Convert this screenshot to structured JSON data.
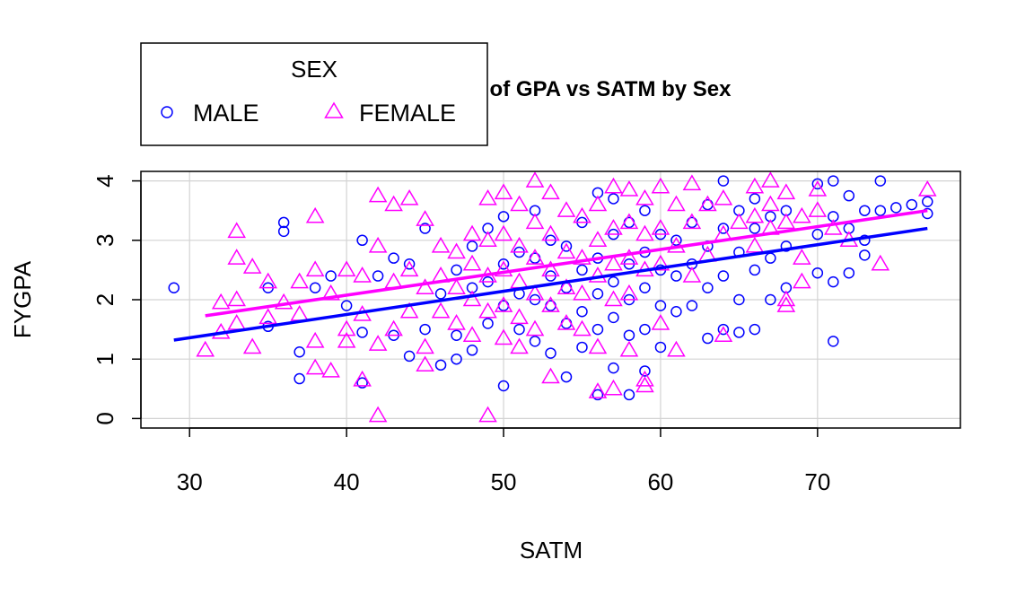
{
  "chart_data": {
    "type": "scatter",
    "title": "Scatterplot of GPA vs SATM by Sex",
    "xlabel": "SATM",
    "ylabel": "FYGPA",
    "xlim": [
      26.9,
      79.1
    ],
    "ylim": [
      -0.16,
      4.16
    ],
    "x_ticks": [
      "30",
      "40",
      "50",
      "60",
      "70"
    ],
    "y_ticks": [
      "0",
      "1",
      "2",
      "3",
      "4"
    ],
    "grid": true,
    "legend": {
      "title": "SEX",
      "placement": "top-left",
      "entries": [
        {
          "label": "MALE",
          "marker": "circle",
          "color": "#0000ff"
        },
        {
          "label": "FEMALE",
          "marker": "triangle",
          "color": "#ff00ff"
        }
      ]
    },
    "series": [
      {
        "name": "MALE",
        "color": "#0000ff",
        "marker": "circle",
        "points": [
          [
            29,
            2.2
          ],
          [
            35,
            1.55
          ],
          [
            35,
            2.2
          ],
          [
            36,
            3.3
          ],
          [
            36,
            3.15
          ],
          [
            37,
            0.67
          ],
          [
            37,
            1.12
          ],
          [
            38,
            2.2
          ],
          [
            39,
            2.4
          ],
          [
            40,
            1.9
          ],
          [
            41,
            0.6
          ],
          [
            41,
            3.0
          ],
          [
            41,
            1.45
          ],
          [
            42,
            2.4
          ],
          [
            43,
            1.4
          ],
          [
            43,
            2.7
          ],
          [
            44,
            1.05
          ],
          [
            44,
            2.6
          ],
          [
            45,
            1.5
          ],
          [
            45,
            3.2
          ],
          [
            46,
            0.9
          ],
          [
            46,
            2.1
          ],
          [
            47,
            1.0
          ],
          [
            47,
            1.4
          ],
          [
            47,
            2.5
          ],
          [
            48,
            1.15
          ],
          [
            48,
            2.2
          ],
          [
            48,
            2.9
          ],
          [
            49,
            1.6
          ],
          [
            49,
            2.3
          ],
          [
            49,
            3.2
          ],
          [
            50,
            0.55
          ],
          [
            50,
            1.9
          ],
          [
            50,
            2.6
          ],
          [
            50,
            3.4
          ],
          [
            51,
            1.5
          ],
          [
            51,
            2.1
          ],
          [
            51,
            2.8
          ],
          [
            52,
            1.3
          ],
          [
            52,
            2.0
          ],
          [
            52,
            2.7
          ],
          [
            52,
            3.5
          ],
          [
            53,
            1.1
          ],
          [
            53,
            1.9
          ],
          [
            53,
            2.4
          ],
          [
            53,
            3.0
          ],
          [
            54,
            0.7
          ],
          [
            54,
            1.6
          ],
          [
            54,
            2.2
          ],
          [
            54,
            2.9
          ],
          [
            55,
            1.2
          ],
          [
            55,
            1.8
          ],
          [
            55,
            2.5
          ],
          [
            55,
            3.3
          ],
          [
            56,
            0.4
          ],
          [
            56,
            1.5
          ],
          [
            56,
            2.1
          ],
          [
            56,
            2.7
          ],
          [
            56,
            3.8
          ],
          [
            57,
            0.85
          ],
          [
            57,
            1.7
          ],
          [
            57,
            2.3
          ],
          [
            57,
            3.1
          ],
          [
            57,
            3.7
          ],
          [
            58,
            0.4
          ],
          [
            58,
            1.4
          ],
          [
            58,
            2.0
          ],
          [
            58,
            2.6
          ],
          [
            58,
            3.3
          ],
          [
            59,
            0.8
          ],
          [
            59,
            1.5
          ],
          [
            59,
            2.2
          ],
          [
            59,
            2.8
          ],
          [
            59,
            3.5
          ],
          [
            60,
            1.2
          ],
          [
            60,
            1.9
          ],
          [
            60,
            2.5
          ],
          [
            60,
            3.1
          ],
          [
            61,
            1.8
          ],
          [
            61,
            2.4
          ],
          [
            61,
            3.0
          ],
          [
            62,
            1.9
          ],
          [
            62,
            2.6
          ],
          [
            62,
            3.3
          ],
          [
            63,
            1.35
          ],
          [
            63,
            2.2
          ],
          [
            63,
            2.9
          ],
          [
            63,
            3.6
          ],
          [
            64,
            1.5
          ],
          [
            64,
            2.4
          ],
          [
            64,
            3.2
          ],
          [
            64,
            4.0
          ],
          [
            65,
            1.45
          ],
          [
            65,
            2.0
          ],
          [
            65,
            2.8
          ],
          [
            65,
            3.5
          ],
          [
            66,
            1.5
          ],
          [
            66,
            2.5
          ],
          [
            66,
            3.2
          ],
          [
            66,
            3.7
          ],
          [
            67,
            2.0
          ],
          [
            67,
            2.7
          ],
          [
            67,
            3.4
          ],
          [
            68,
            2.2
          ],
          [
            68,
            2.9
          ],
          [
            68,
            3.5
          ],
          [
            70,
            2.45
          ],
          [
            70,
            3.1
          ],
          [
            70,
            3.95
          ],
          [
            71,
            1.3
          ],
          [
            71,
            2.3
          ],
          [
            71,
            3.4
          ],
          [
            71,
            4.0
          ],
          [
            72,
            2.45
          ],
          [
            72,
            3.2
          ],
          [
            72,
            3.75
          ],
          [
            73,
            2.75
          ],
          [
            73,
            3.0
          ],
          [
            73,
            3.5
          ],
          [
            74,
            3.5
          ],
          [
            74,
            4.0
          ],
          [
            75,
            3.55
          ],
          [
            76,
            3.6
          ],
          [
            77,
            3.45
          ],
          [
            77,
            3.65
          ]
        ],
        "fit_line": {
          "x": [
            29,
            77
          ],
          "y": [
            1.32,
            3.2
          ]
        }
      },
      {
        "name": "FEMALE",
        "color": "#ff00ff",
        "marker": "triangle",
        "points": [
          [
            31,
            1.15
          ],
          [
            32,
            1.95
          ],
          [
            32,
            1.45
          ],
          [
            33,
            3.15
          ],
          [
            33,
            2.7
          ],
          [
            33,
            1.6
          ],
          [
            33,
            2.0
          ],
          [
            34,
            1.2
          ],
          [
            34,
            2.55
          ],
          [
            35,
            2.3
          ],
          [
            35,
            1.7
          ],
          [
            36,
            1.95
          ],
          [
            37,
            2.3
          ],
          [
            37,
            1.75
          ],
          [
            38,
            3.4
          ],
          [
            38,
            2.5
          ],
          [
            38,
            1.3
          ],
          [
            38,
            0.85
          ],
          [
            39,
            0.8
          ],
          [
            39,
            2.1
          ],
          [
            40,
            1.5
          ],
          [
            40,
            2.5
          ],
          [
            40,
            1.3
          ],
          [
            41,
            0.65
          ],
          [
            41,
            1.75
          ],
          [
            41,
            2.4
          ],
          [
            42,
            3.75
          ],
          [
            42,
            2.9
          ],
          [
            42,
            1.25
          ],
          [
            42,
            0.05
          ],
          [
            43,
            3.6
          ],
          [
            43,
            2.3
          ],
          [
            43,
            1.5
          ],
          [
            44,
            3.7
          ],
          [
            44,
            2.5
          ],
          [
            44,
            1.8
          ],
          [
            45,
            3.35
          ],
          [
            45,
            2.2
          ],
          [
            45,
            1.2
          ],
          [
            45,
            0.9
          ],
          [
            46,
            2.9
          ],
          [
            46,
            2.4
          ],
          [
            46,
            1.8
          ],
          [
            47,
            2.8
          ],
          [
            47,
            2.2
          ],
          [
            47,
            1.6
          ],
          [
            48,
            3.1
          ],
          [
            48,
            2.6
          ],
          [
            48,
            2.0
          ],
          [
            48,
            1.4
          ],
          [
            49,
            3.7
          ],
          [
            49,
            3.0
          ],
          [
            49,
            2.4
          ],
          [
            49,
            1.8
          ],
          [
            49,
            0.05
          ],
          [
            50,
            3.8
          ],
          [
            50,
            3.1
          ],
          [
            50,
            2.5
          ],
          [
            50,
            1.9
          ],
          [
            50,
            1.35
          ],
          [
            51,
            3.6
          ],
          [
            51,
            2.9
          ],
          [
            51,
            2.3
          ],
          [
            51,
            1.7
          ],
          [
            51,
            1.2
          ],
          [
            52,
            4.0
          ],
          [
            52,
            3.3
          ],
          [
            52,
            2.7
          ],
          [
            52,
            2.1
          ],
          [
            52,
            1.5
          ],
          [
            53,
            3.8
          ],
          [
            53,
            3.1
          ],
          [
            53,
            2.5
          ],
          [
            53,
            1.9
          ],
          [
            53,
            0.7
          ],
          [
            54,
            3.5
          ],
          [
            54,
            2.8
          ],
          [
            54,
            2.2
          ],
          [
            54,
            1.6
          ],
          [
            55,
            3.4
          ],
          [
            55,
            2.7
          ],
          [
            55,
            2.1
          ],
          [
            55,
            1.5
          ],
          [
            56,
            3.6
          ],
          [
            56,
            3.0
          ],
          [
            56,
            2.4
          ],
          [
            56,
            0.45
          ],
          [
            56,
            1.2
          ],
          [
            57,
            3.9
          ],
          [
            57,
            3.2
          ],
          [
            57,
            2.6
          ],
          [
            57,
            2.0
          ],
          [
            57,
            0.5
          ],
          [
            58,
            3.85
          ],
          [
            58,
            3.3
          ],
          [
            58,
            2.7
          ],
          [
            58,
            2.1
          ],
          [
            58,
            1.15
          ],
          [
            59,
            3.7
          ],
          [
            59,
            3.1
          ],
          [
            59,
            2.5
          ],
          [
            59,
            0.55
          ],
          [
            59,
            0.65
          ],
          [
            60,
            3.9
          ],
          [
            60,
            3.2
          ],
          [
            60,
            2.6
          ],
          [
            60,
            1.6
          ],
          [
            61,
            3.6
          ],
          [
            61,
            2.9
          ],
          [
            61,
            1.15
          ],
          [
            62,
            3.95
          ],
          [
            62,
            3.3
          ],
          [
            62,
            2.4
          ],
          [
            63,
            3.6
          ],
          [
            63,
            2.75
          ],
          [
            64,
            3.7
          ],
          [
            64,
            3.1
          ],
          [
            64,
            1.4
          ],
          [
            65,
            3.3
          ],
          [
            66,
            3.9
          ],
          [
            66,
            3.4
          ],
          [
            66,
            2.9
          ],
          [
            67,
            4.0
          ],
          [
            67,
            3.6
          ],
          [
            67,
            3.2
          ],
          [
            68,
            3.8
          ],
          [
            68,
            3.3
          ],
          [
            68,
            1.9
          ],
          [
            68,
            2.0
          ],
          [
            69,
            3.4
          ],
          [
            69,
            2.3
          ],
          [
            69,
            2.7
          ],
          [
            70,
            3.85
          ],
          [
            70,
            3.5
          ],
          [
            71,
            3.2
          ],
          [
            72,
            3.0
          ],
          [
            74,
            2.6
          ],
          [
            77,
            3.85
          ]
        ],
        "fit_line": {
          "x": [
            31,
            77
          ],
          "y": [
            1.73,
            3.5
          ]
        }
      }
    ]
  }
}
